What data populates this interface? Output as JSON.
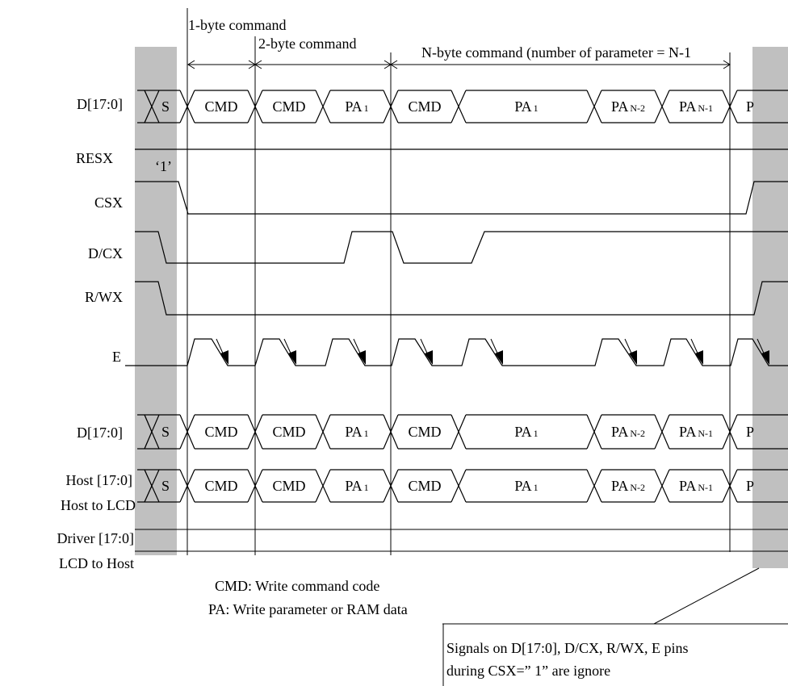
{
  "colors": {
    "shade": "#c0c0c0",
    "line": "#000000",
    "background": "#ffffff"
  },
  "signals": {
    "d_top": "D[17:0]",
    "resx": "RESX",
    "csx": "CSX",
    "dcx": "D/CX",
    "rwx": "R/WX",
    "e": "E",
    "d_bottom": "D[17:0]",
    "host_line1": "Host [17:0]",
    "host_line2": "Host to LCD",
    "driver_line1": "Driver [17:0]",
    "driver_line2": "LCD to Host"
  },
  "resx_value": "‘1’",
  "headers": {
    "one_byte": "1-byte command",
    "two_byte": "2-byte command",
    "n_byte": "N-byte command (number of parameter = N-1"
  },
  "bus_cells": {
    "s": "S",
    "cmd": "CMD",
    "pa_main": "PA",
    "sub_1": "1",
    "sub_n2": "N-2",
    "sub_n1": "N-1",
    "p": "P"
  },
  "legend": {
    "cmd": "CMD: Write command code",
    "pa": "PA: Write parameter or RAM data"
  },
  "note": {
    "line1": "Signals on D[17:0], D/CX, R/WX, E pins",
    "line2": "during CSX=” 1” are ignore"
  }
}
